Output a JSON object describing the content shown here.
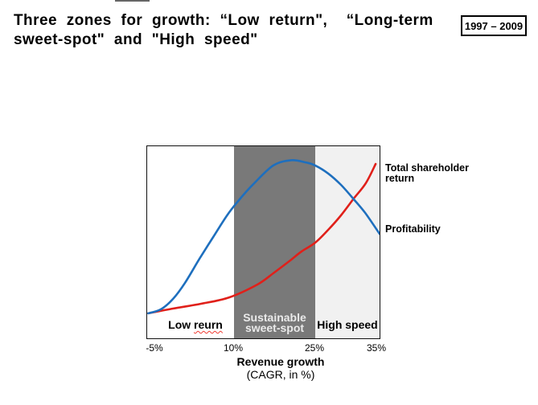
{
  "slide": {
    "title_lines": [
      "Three zones for growth: “Low return\",  “Long-term",
      "sweet-spot\" and \"High speed\""
    ],
    "date_range": "1997 – 2009"
  },
  "chart_data": {
    "type": "line",
    "title": "Three zones for growth",
    "x_axis": {
      "title": "Revenue growth",
      "subtitle": "(CAGR, in %)",
      "tick_labels": [
        "-5%",
        "10%",
        "25%",
        "35%"
      ],
      "tick_values_pct": [
        -5,
        10,
        25,
        35
      ]
    },
    "y_axis": {
      "visible": false,
      "note": "qualitative, no scale shown"
    },
    "zones": [
      {
        "label": "Low reurn",
        "label_pre": "Low ",
        "label_misspelled": "reurn",
        "from_pct": -5,
        "to_pct": 10,
        "fill": "#ffffff",
        "label_color": "#000000",
        "misspelling_underline": "red-wavy"
      },
      {
        "label": "Sustainable sweet-spot",
        "label_line1": "Sustainable",
        "label_line2": "sweet-spot",
        "from_pct": 10,
        "to_pct": 25,
        "fill": "#797979",
        "label_color": "#eaeaea"
      },
      {
        "label": "High speed",
        "from_pct": 25,
        "to_pct": 35,
        "fill": "#f1f1f1",
        "label_color": "#000000"
      }
    ],
    "series": [
      {
        "name": "Total shareholder return",
        "color": "#e0201a",
        "points_uv": [
          [
            0.005,
            0.13
          ],
          [
            0.111,
            0.155
          ],
          [
            0.232,
            0.18
          ],
          [
            0.353,
            0.213
          ],
          [
            0.474,
            0.28
          ],
          [
            0.543,
            0.339
          ],
          [
            0.612,
            0.402
          ],
          [
            0.664,
            0.452
          ],
          [
            0.723,
            0.498
          ],
          [
            0.779,
            0.565
          ],
          [
            0.834,
            0.64
          ],
          [
            0.889,
            0.728
          ],
          [
            0.941,
            0.808
          ],
          [
            0.983,
            0.908
          ]
        ]
      },
      {
        "name": "Profitability",
        "color": "#1e6fbe",
        "points_uv": [
          [
            0.005,
            0.13
          ],
          [
            0.059,
            0.151
          ],
          [
            0.111,
            0.205
          ],
          [
            0.163,
            0.289
          ],
          [
            0.225,
            0.414
          ],
          [
            0.284,
            0.527
          ],
          [
            0.346,
            0.644
          ],
          [
            0.398,
            0.724
          ],
          [
            0.457,
            0.803
          ],
          [
            0.543,
            0.9
          ],
          [
            0.619,
            0.927
          ],
          [
            0.682,
            0.916
          ],
          [
            0.723,
            0.9
          ],
          [
            0.779,
            0.858
          ],
          [
            0.834,
            0.799
          ],
          [
            0.889,
            0.724
          ],
          [
            0.938,
            0.653
          ],
          [
            1.0,
            0.544
          ]
        ]
      }
    ],
    "legend_position": "right"
  }
}
